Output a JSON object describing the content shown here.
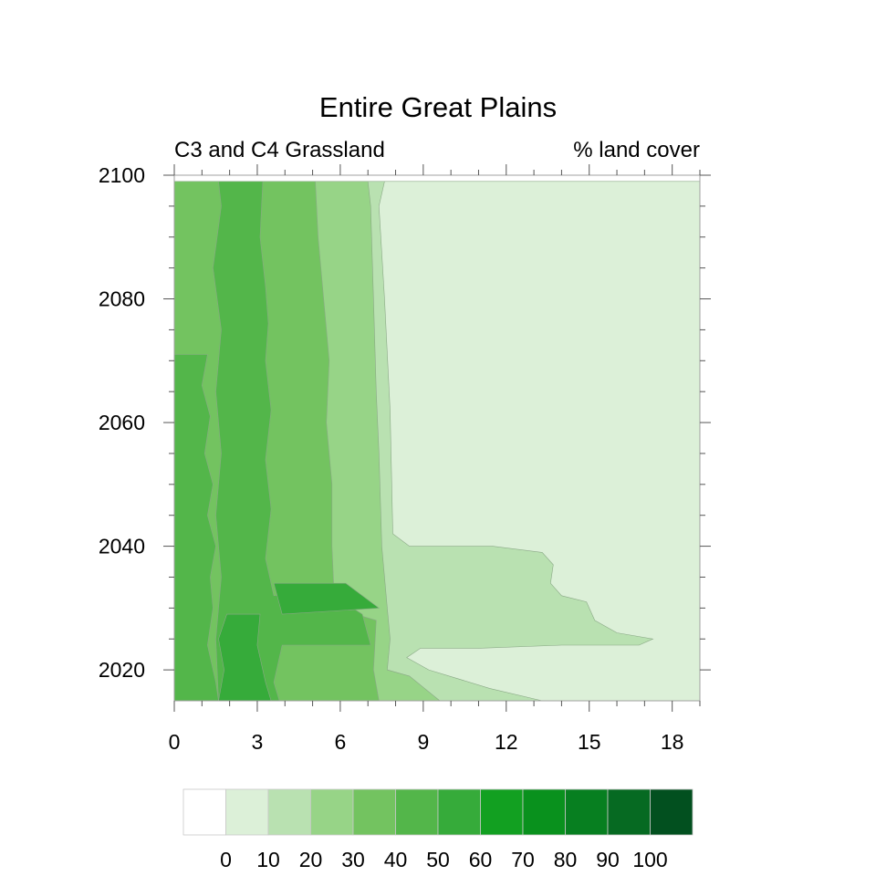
{
  "chart_data": {
    "type": "heatmap",
    "title": "Entire Great Plains",
    "left_string": "C3 and C4 Grassland",
    "right_string": "% land cover",
    "xlabel": "",
    "ylabel": "",
    "x_ticks": [
      "0",
      "3",
      "6",
      "9",
      "12",
      "15",
      "18"
    ],
    "y_ticks": [
      "2020",
      "2040",
      "2060",
      "2080",
      "2100"
    ],
    "xlim": [
      0,
      19
    ],
    "ylim": [
      2015,
      2100
    ],
    "legend": {
      "position": "bottom",
      "labels": [
        "0",
        "10",
        "20",
        "30",
        "40",
        "50",
        "60",
        "70",
        "80",
        "90",
        "100"
      ],
      "colors": [
        "#ffffff",
        "#dcf0d8",
        "#b9e1b1",
        "#97d487",
        "#73c360",
        "#53b64a",
        "#36ab3a",
        "#12a021",
        "#09911d",
        "#077f20",
        "#066a22",
        "#02501f"
      ]
    },
    "regions": [
      {
        "level": 1,
        "fill": "#dcf0d8",
        "path": [
          [
            0,
            2099
          ],
          [
            19,
            2099
          ],
          [
            19,
            2015
          ],
          [
            0,
            2015
          ]
        ]
      },
      {
        "level": 2,
        "fill": "#b9e1b1",
        "path": [
          [
            0,
            2099
          ],
          [
            7.6,
            2099
          ],
          [
            7.4,
            2095
          ],
          [
            7.6,
            2080
          ],
          [
            7.8,
            2062
          ],
          [
            7.9,
            2042
          ],
          [
            8.5,
            2040
          ],
          [
            10,
            2040
          ],
          [
            11.5,
            2040
          ],
          [
            13.3,
            2039
          ],
          [
            13.7,
            2037
          ],
          [
            13.6,
            2034
          ],
          [
            14,
            2032
          ],
          [
            14.9,
            2031
          ],
          [
            15.2,
            2028
          ],
          [
            16,
            2026
          ],
          [
            17.3,
            2025
          ],
          [
            16.8,
            2024
          ],
          [
            14,
            2024
          ],
          [
            11,
            2023.5
          ],
          [
            8.9,
            2023.5
          ],
          [
            8.4,
            2022
          ],
          [
            9.2,
            2020
          ],
          [
            11.4,
            2017
          ],
          [
            13.3,
            2015
          ],
          [
            0,
            2015
          ]
        ]
      },
      {
        "level": 3,
        "fill": "#97d487",
        "path": [
          [
            0,
            2099
          ],
          [
            7,
            2099
          ],
          [
            7.1,
            2095
          ],
          [
            7.2,
            2080
          ],
          [
            7.3,
            2065
          ],
          [
            7.4,
            2055
          ],
          [
            7.5,
            2040
          ],
          [
            7.7,
            2030
          ],
          [
            7.8,
            2025
          ],
          [
            7.7,
            2020
          ],
          [
            8.5,
            2019
          ],
          [
            9.6,
            2015
          ],
          [
            0,
            2015
          ]
        ]
      },
      {
        "level": 4,
        "fill": "#73c360",
        "path": [
          [
            0,
            2099
          ],
          [
            5.1,
            2099
          ],
          [
            5.2,
            2090
          ],
          [
            5.4,
            2080
          ],
          [
            5.6,
            2070
          ],
          [
            5.5,
            2060
          ],
          [
            5.7,
            2050
          ],
          [
            5.7,
            2040
          ],
          [
            5.8,
            2030
          ],
          [
            7.3,
            2028
          ],
          [
            7.2,
            2020
          ],
          [
            7.4,
            2015
          ],
          [
            0,
            2015
          ]
        ]
      },
      {
        "level": 5,
        "fill": "#53b64a",
        "path": [
          [
            0,
            2071
          ],
          [
            1.2,
            2071
          ],
          [
            1,
            2066
          ],
          [
            1.3,
            2061
          ],
          [
            1.1,
            2055
          ],
          [
            1.4,
            2050
          ],
          [
            1.2,
            2045
          ],
          [
            1.5,
            2040
          ],
          [
            1.3,
            2035
          ],
          [
            1.4,
            2030
          ],
          [
            1.2,
            2024
          ],
          [
            1.5,
            2018
          ],
          [
            1.6,
            2015
          ],
          [
            0,
            2015
          ]
        ]
      },
      {
        "level": 5,
        "fill": "#53b64a",
        "path": [
          [
            1.6,
            2099
          ],
          [
            3.2,
            2099
          ],
          [
            3.1,
            2090
          ],
          [
            3.3,
            2082
          ],
          [
            3.4,
            2076
          ],
          [
            3.3,
            2070
          ],
          [
            3.5,
            2062
          ],
          [
            3.3,
            2054
          ],
          [
            3.5,
            2046
          ],
          [
            3.3,
            2038
          ],
          [
            3.6,
            2032
          ],
          [
            5.4,
            2033
          ],
          [
            6.8,
            2029
          ],
          [
            7.1,
            2024
          ],
          [
            3.9,
            2024
          ],
          [
            3.6,
            2018
          ],
          [
            3.8,
            2015
          ],
          [
            1.6,
            2015
          ],
          [
            1.5,
            2025
          ],
          [
            1.7,
            2035
          ],
          [
            1.5,
            2045
          ],
          [
            1.7,
            2055
          ],
          [
            1.5,
            2065
          ],
          [
            1.7,
            2075
          ],
          [
            1.4,
            2085
          ],
          [
            1.7,
            2095
          ]
        ]
      },
      {
        "level": 6,
        "fill": "#36ab3a",
        "path": [
          [
            1.9,
            2029
          ],
          [
            3.1,
            2029
          ],
          [
            3,
            2024
          ],
          [
            3.3,
            2018
          ],
          [
            3.5,
            2015
          ],
          [
            1.6,
            2015
          ],
          [
            1.8,
            2020
          ],
          [
            1.6,
            2025
          ]
        ]
      },
      {
        "level": 6,
        "fill": "#36ab3a",
        "path": [
          [
            3.6,
            2034
          ],
          [
            6.2,
            2034
          ],
          [
            7.4,
            2030
          ],
          [
            3.9,
            2029
          ]
        ]
      }
    ]
  }
}
